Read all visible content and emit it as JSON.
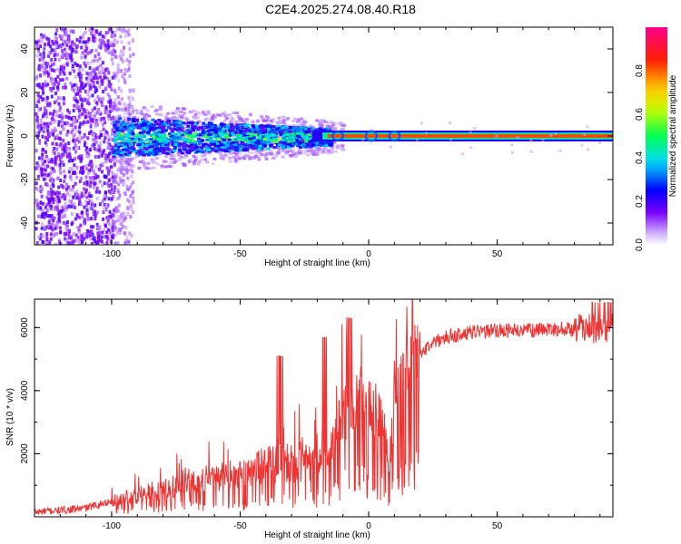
{
  "title": "C2E4.2025.274.08.40.R18",
  "chart_data": [
    {
      "type": "heatmap",
      "xlabel": "Height of straight line (km)",
      "ylabel": "Frequency (Hz)",
      "xlim": [
        -130,
        95
      ],
      "ylim": [
        -50,
        50
      ],
      "xticks": [
        -100,
        -50,
        0,
        50
      ],
      "yticks": [
        40,
        20,
        0,
        -20,
        -40
      ],
      "colorbar": {
        "label": "Normalized spectral amplitude",
        "range": [
          0,
          1
        ],
        "ticks": [
          "0.0",
          "0.2",
          "0.4",
          "0.6",
          "0.8"
        ]
      }
    },
    {
      "type": "line",
      "xlabel": "Height of straight line (km)",
      "ylabel": "SNR (10 * v/v)",
      "xlim": [
        -130,
        95
      ],
      "ylim": [
        0,
        6900
      ],
      "xticks": [
        -100,
        -50,
        0,
        50
      ],
      "yticks": [
        2000,
        4000,
        6000
      ],
      "series": [
        {
          "name": "SNR",
          "color": "#ee3333",
          "x": [
            -130,
            -120,
            -110,
            -100,
            -95,
            -90,
            -85,
            -80,
            -75,
            -70,
            -65,
            -60,
            -55,
            -50,
            -45,
            -40,
            -35,
            -30,
            -25,
            -20,
            -17,
            -15,
            -10,
            -5,
            0,
            5,
            8,
            10,
            15,
            20,
            25,
            30,
            40,
            50,
            60,
            70,
            80,
            85,
            90,
            95
          ],
          "y": [
            150,
            200,
            280,
            500,
            620,
            680,
            820,
            860,
            1000,
            1200,
            1100,
            1200,
            1300,
            1300,
            1500,
            1650,
            1700,
            1750,
            1800,
            1800,
            1900,
            2100,
            3300,
            3600,
            3600,
            3300,
            1600,
            3600,
            4600,
            5200,
            5500,
            5700,
            5850,
            5900,
            5900,
            5950,
            5950,
            6000,
            5900,
            6000
          ],
          "annotations": "noisy spikes to ~5100 at -35 km, ~5700 at -17 km, ~6300 at -7 km"
        }
      ]
    }
  ]
}
